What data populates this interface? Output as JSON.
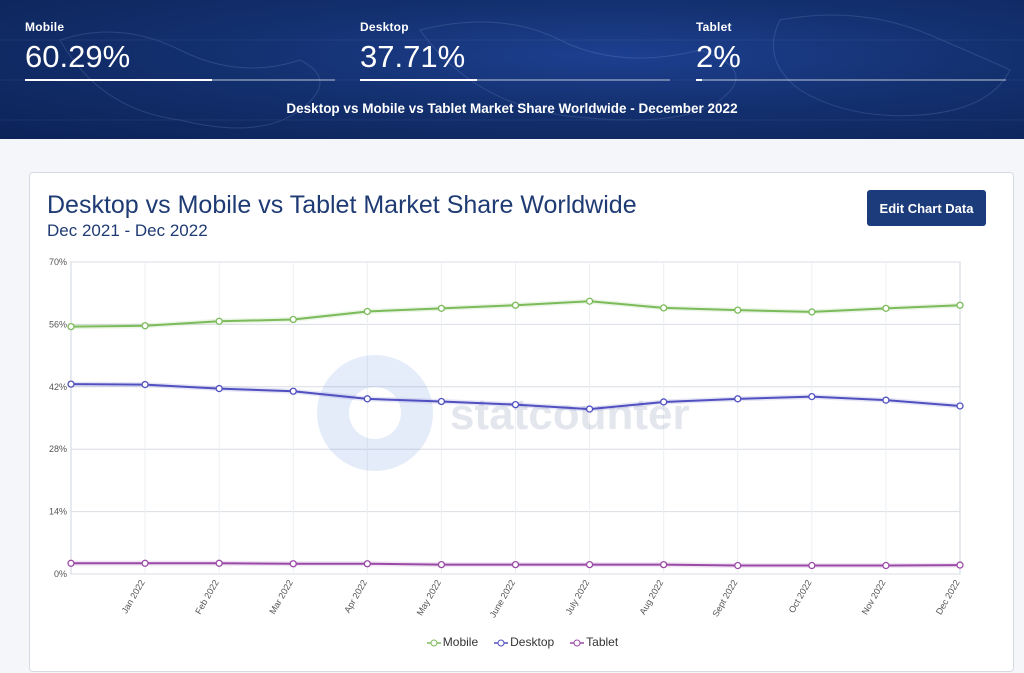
{
  "header": {
    "stats": [
      {
        "label": "Mobile",
        "value": "60.29%",
        "share": 0.6029
      },
      {
        "label": "Desktop",
        "value": "37.71%",
        "share": 0.3771
      },
      {
        "label": "Tablet",
        "value": "2%",
        "share": 0.02
      }
    ],
    "caption": "Desktop vs Mobile vs Tablet Market Share Worldwide - December 2022"
  },
  "card": {
    "edit_button": "Edit Chart Data",
    "watermark": "statcounter"
  },
  "chart_data": {
    "type": "line",
    "title": "Desktop vs Mobile vs Tablet Market Share Worldwide",
    "subtitle": "Dec 2021 - Dec 2022",
    "x": [
      "",
      "Jan 2022",
      "Feb 2022",
      "Mar 2022",
      "Apr 2022",
      "May 2022",
      "June 2022",
      "July 2022",
      "Aug 2022",
      "Sept 2022",
      "Oct 2022",
      "Nov 2022",
      "Dec 2022"
    ],
    "yticks": [
      "0%",
      "14%",
      "28%",
      "42%",
      "56%",
      "70%"
    ],
    "ylim": [
      0,
      70
    ],
    "grid": true,
    "legend_position": "bottom-center",
    "series": [
      {
        "name": "Mobile",
        "color": "#7cbb5a",
        "values": [
          55.5,
          55.7,
          56.7,
          57.1,
          58.9,
          59.6,
          60.3,
          61.2,
          59.7,
          59.2,
          58.8,
          59.6,
          60.3
        ]
      },
      {
        "name": "Desktop",
        "color": "#5050c0",
        "values": [
          42.6,
          42.5,
          41.6,
          41.0,
          39.3,
          38.7,
          38.0,
          37.0,
          38.6,
          39.3,
          39.8,
          39.0,
          37.7
        ]
      },
      {
        "name": "Tablet",
        "color": "#9a4aa6",
        "values": [
          2.4,
          2.4,
          2.4,
          2.3,
          2.3,
          2.1,
          2.1,
          2.1,
          2.1,
          1.9,
          1.9,
          1.9,
          2.0
        ]
      }
    ]
  }
}
